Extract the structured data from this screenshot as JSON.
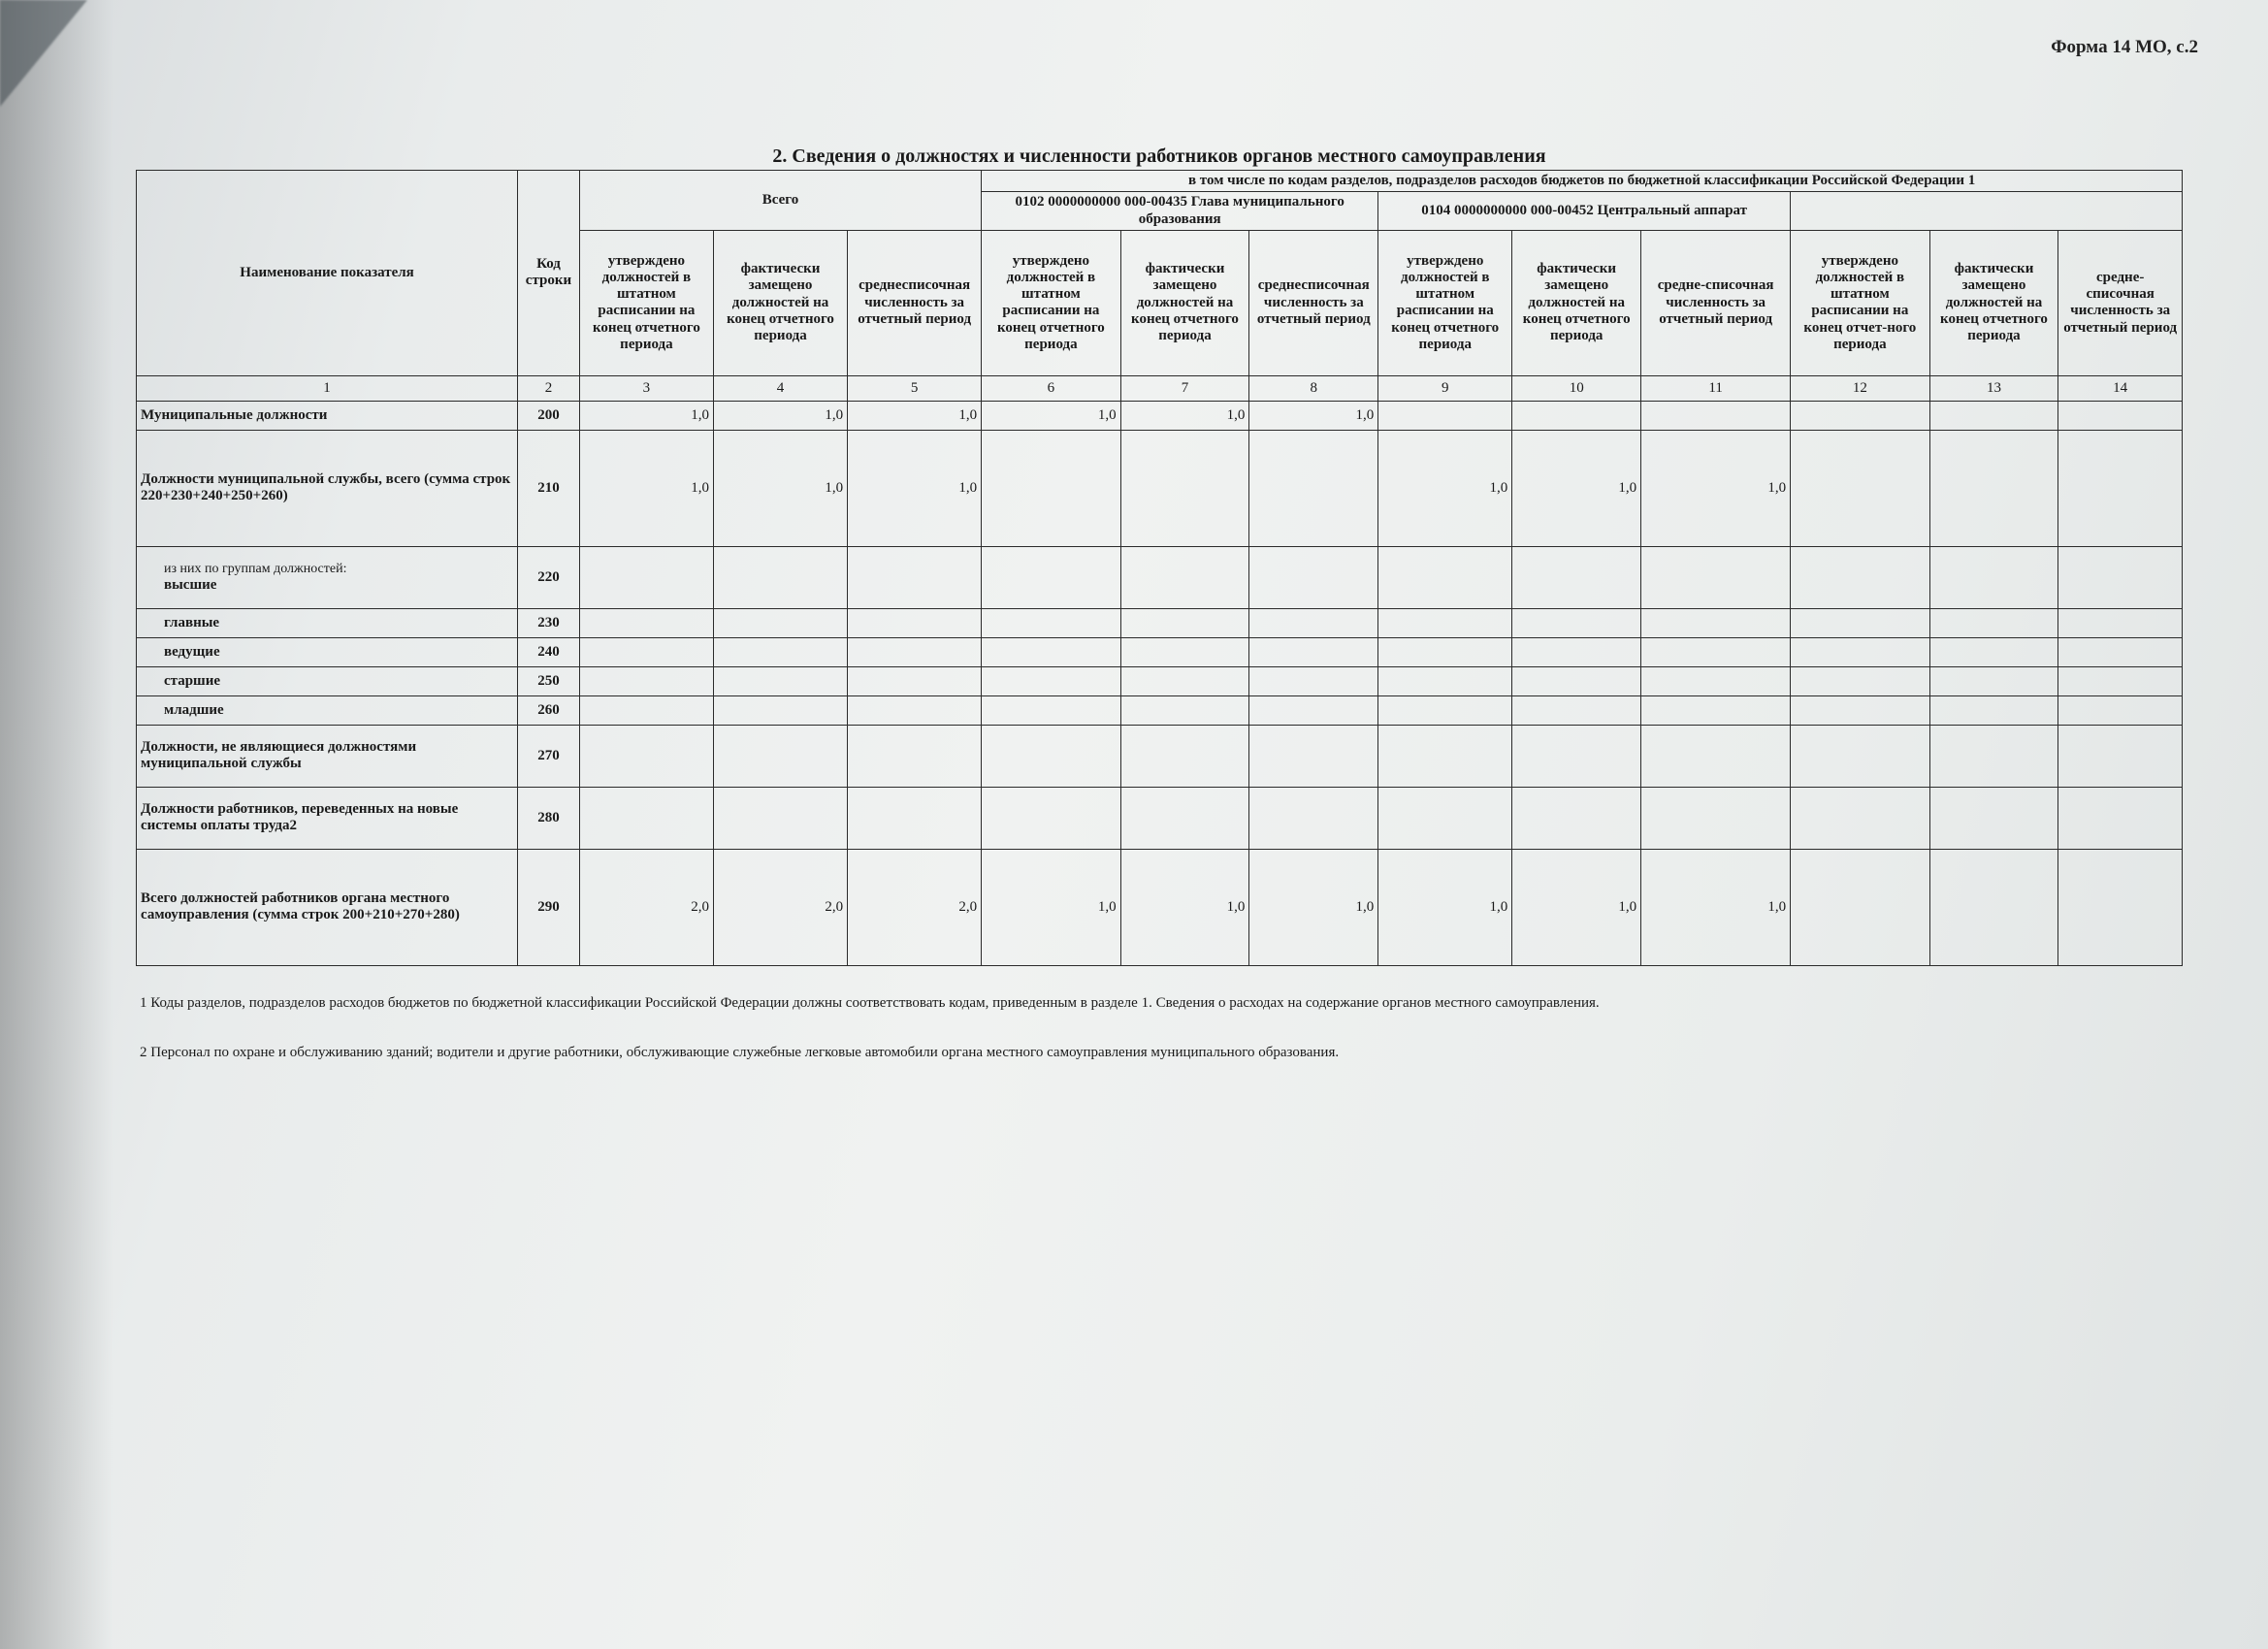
{
  "form_code": "Форма 14 МО, с.2",
  "title": "2. Сведения о должностях и численности работников органов местного самоуправления",
  "header_note": "в том числе по кодам разделов, подразделов расходов бюджетов по бюджетной классификации  Российской Федерации 1",
  "headers": {
    "c1": "Наименование показателя",
    "c2": "Код строки",
    "total": "Всего",
    "group1": "0102 0000000000 000-00435 Глава муниципального образования",
    "group2": "0104 0000000000 000-00452 Центральный аппарат",
    "h3": "утверждено должностей в штатном расписании на конец отчетного периода",
    "h4": "фактически замещено должностей на конец отчетного периода",
    "h5": "среднесписочная численность за отчетный период",
    "h6": "утверждено должностей в штатном расписании на конец отчетного периода",
    "h7": "фактически замещено должностей на конец отчетного периода",
    "h8": "среднесписочная численность за отчетный период",
    "h9": "утверждено должностей в штатном расписании на конец отчетного периода",
    "h10": "фактически замещено должностей на конец отчетного периода",
    "h11": "средне-списочная численность за отчетный период",
    "h12": "утверждено должностей в штатном расписании на конец отчет-ного периода",
    "h13": "фактически замещено должностей на конец отчетного периода",
    "h14": "средне-списочная численность за отчетный период"
  },
  "colnums": [
    "1",
    "2",
    "3",
    "4",
    "5",
    "6",
    "7",
    "8",
    "9",
    "10",
    "11",
    "12",
    "13",
    "14"
  ],
  "rows": [
    {
      "name": "Муниципальные должности",
      "pre": "",
      "code": "200",
      "v": [
        "1,0",
        "1,0",
        "1,0",
        "1,0",
        "1,0",
        "1,0",
        "",
        "",
        "",
        "",
        "",
        ""
      ],
      "cls": "row"
    },
    {
      "name": "Должности муниципальной службы, всего (сумма строк 220+230+240+250+260)",
      "pre": "",
      "code": "210",
      "v": [
        "1,0",
        "1,0",
        "1,0",
        "",
        "",
        "",
        "1,0",
        "1,0",
        "1,0",
        "",
        "",
        ""
      ],
      "cls": "taller"
    },
    {
      "name": "высшие",
      "pre": "из них по группам должностей:",
      "code": "220",
      "v": [
        "",
        "",
        "",
        "",
        "",
        "",
        "",
        "",
        "",
        "",
        "",
        ""
      ],
      "cls": "tall"
    },
    {
      "name": "главные",
      "pre": "",
      "code": "230",
      "v": [
        "",
        "",
        "",
        "",
        "",
        "",
        "",
        "",
        "",
        "",
        "",
        ""
      ],
      "cls": "row"
    },
    {
      "name": "ведущие",
      "pre": "",
      "code": "240",
      "v": [
        "",
        "",
        "",
        "",
        "",
        "",
        "",
        "",
        "",
        "",
        "",
        ""
      ],
      "cls": "row"
    },
    {
      "name": "старшие",
      "pre": "",
      "code": "250",
      "v": [
        "",
        "",
        "",
        "",
        "",
        "",
        "",
        "",
        "",
        "",
        "",
        ""
      ],
      "cls": "row"
    },
    {
      "name": "младшие",
      "pre": "",
      "code": "260",
      "v": [
        "",
        "",
        "",
        "",
        "",
        "",
        "",
        "",
        "",
        "",
        "",
        ""
      ],
      "cls": "row"
    },
    {
      "name": "Должности, не являющиеся должностями муниципальной службы",
      "pre": "",
      "code": "270",
      "v": [
        "",
        "",
        "",
        "",
        "",
        "",
        "",
        "",
        "",
        "",
        "",
        ""
      ],
      "cls": "tall"
    },
    {
      "name": "Должности работников, переведенных на новые системы оплаты труда2",
      "pre": "",
      "code": "280",
      "v": [
        "",
        "",
        "",
        "",
        "",
        "",
        "",
        "",
        "",
        "",
        "",
        ""
      ],
      "cls": "tall"
    },
    {
      "name": "Всего должностей работников органа местного самоуправления (сумма строк 200+210+270+280)",
      "pre": "",
      "code": "290",
      "v": [
        "2,0",
        "2,0",
        "2,0",
        "1,0",
        "1,0",
        "1,0",
        "1,0",
        "1,0",
        "1,0",
        "",
        "",
        ""
      ],
      "cls": "taller"
    }
  ],
  "footnotes": {
    "f1": "1  Коды разделов, подразделов расходов бюджетов по бюджетной классификации Российской Федерации должны соответствовать кодам, приведенным в разделе 1. Сведения о расходах на содержание органов местного самоуправления.",
    "f2": "2 Персонал по охране и обслуживанию  зданий; водители и другие работники, обслуживающие служебные легковые автомобили органа местного самоуправления муниципального образования."
  },
  "colwidths": {
    "c1": 370,
    "c2": 60,
    "c3": 130,
    "c4": 130,
    "c5": 130,
    "c6": 135,
    "c7": 125,
    "c8": 125,
    "c9": 130,
    "c10": 125,
    "c11": 145,
    "c12": 135,
    "c13": 125,
    "c14": 120
  },
  "colors": {
    "border": "#2b2b2b",
    "text": "#1a1a1a"
  }
}
